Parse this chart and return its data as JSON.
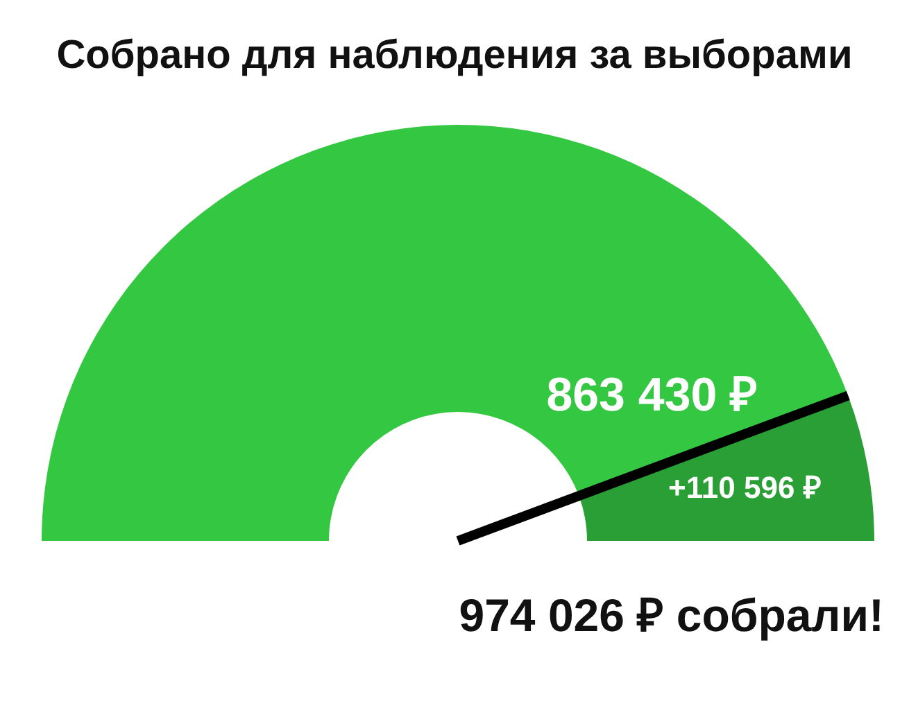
{
  "chart_data": {
    "type": "donut",
    "title": "Собрано для наблюдения за выборами",
    "categories": [
      "863 430 ₽",
      "+110 596 ₽"
    ],
    "values": [
      863430,
      110596
    ],
    "colors": [
      "#34c742",
      "#2a9f36"
    ],
    "needle": "863 430 ₽",
    "annotations": [
      "974 026 ₽ собрали!"
    ],
    "legend": false
  }
}
